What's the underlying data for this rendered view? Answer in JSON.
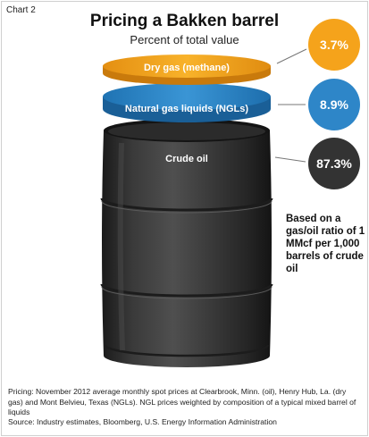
{
  "header": {
    "chart_label": "Chart 2",
    "title": "Pricing a Bakken barrel",
    "subtitle": "Percent of total value"
  },
  "note": "Based on a gas/oil ratio of 1 MMcf per 1,000 barrels of crude oil",
  "footnotes": {
    "pricing": "Pricing: November 2012 average monthly spot prices at Clearbrook, Minn. (oil), Henry Hub, La. (dry gas) and Mont Belvieu, Texas (NGLs). NGL prices weighted by composition of a typical mixed barrel of liquids",
    "source": "Source: Industry estimates, Bloomberg, U.S. Energy Information Administration"
  },
  "colors": {
    "dry_gas": "#f5a31b",
    "ngl": "#2e86c8",
    "crude": "#333333"
  },
  "chart_data": {
    "type": "pie",
    "title": "Pricing a Bakken barrel",
    "subtitle": "Percent of total value",
    "unit": "%",
    "categories": [
      "Dry gas (methane)",
      "Natural gas liquids (NGLs)",
      "Crude oil"
    ],
    "values": [
      3.7,
      8.9,
      87.3
    ],
    "value_labels": [
      "3.7%",
      "8.9%",
      "87.3%"
    ]
  }
}
